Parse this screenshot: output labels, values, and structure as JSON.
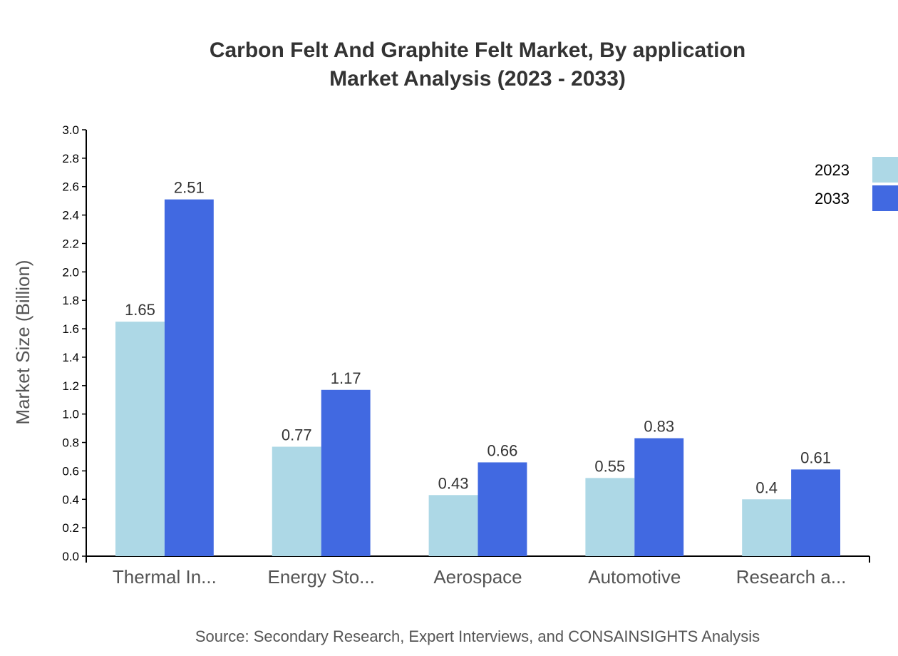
{
  "chart_data": {
    "type": "bar",
    "title": "Carbon Felt And Graphite Felt Market, By application",
    "subtitle": "Market Analysis (2023 - 2033)",
    "xlabel": "",
    "ylabel": "Market Size (Billion)",
    "ylim": [
      0,
      3.0
    ],
    "yticks": [
      "0.0",
      "0.2",
      "0.4",
      "0.6",
      "0.8",
      "1.0",
      "1.2",
      "1.4",
      "1.6",
      "1.8",
      "2.0",
      "2.2",
      "2.4",
      "2.6",
      "2.8",
      "3.0"
    ],
    "categories": [
      "Thermal In...",
      "Energy Sto...",
      "Aerospace",
      "Automotive",
      "Research a..."
    ],
    "series": [
      {
        "name": "2023",
        "color": "#add8e6",
        "values": [
          1.65,
          0.77,
          0.43,
          0.55,
          0.4
        ]
      },
      {
        "name": "2033",
        "color": "#4169e1",
        "values": [
          2.51,
          1.17,
          0.66,
          0.83,
          0.61
        ]
      }
    ],
    "legend_position": "top-right",
    "grid": false,
    "source": "Source: Secondary Research, Expert Interviews, and CONSAINSIGHTS Analysis"
  }
}
